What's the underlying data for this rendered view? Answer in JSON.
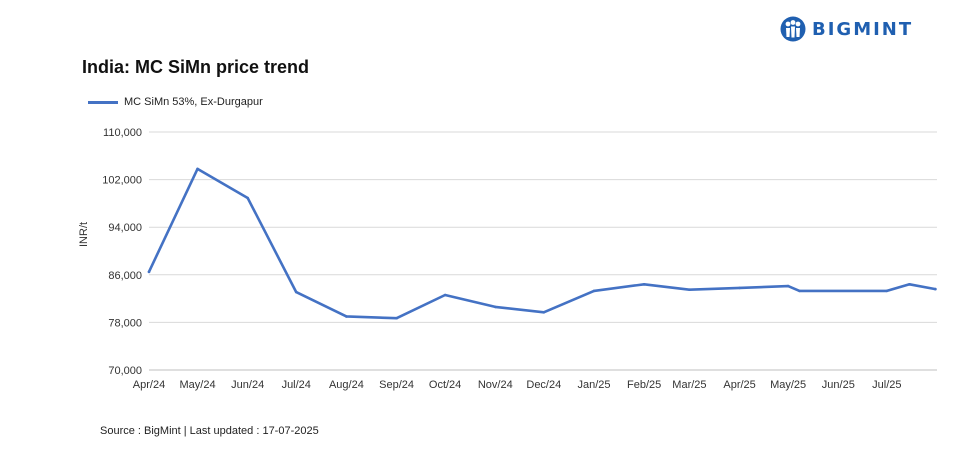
{
  "logo": {
    "text": "BIGMINT",
    "icon": "bigmint-people-icon",
    "color": "#1f5fb0"
  },
  "chart_data": {
    "type": "line",
    "title": "India: MC SiMn price trend",
    "ylabel": "INR/t",
    "xlabel": "",
    "ylim": [
      70000,
      110000
    ],
    "yticks": [
      70000,
      78000,
      86000,
      94000,
      102000,
      110000
    ],
    "ytick_labels": [
      "70,000",
      "78,000",
      "86,000",
      "94,000",
      "102,000",
      "110,000"
    ],
    "x_tick_labels": [
      "Apr/24",
      "May/24",
      "Jun/24",
      "Jul/24",
      "Aug/24",
      "Sep/24",
      "Oct/24",
      "Nov/24",
      "Dec/24",
      "Jan/25",
      "Feb/25",
      "Mar/25",
      "Apr/25",
      "May/25",
      "Jun/25",
      "Jul/25"
    ],
    "x_range": [
      "2024-04-01",
      "2025-08-01"
    ],
    "grid": true,
    "legend_position": "top-left",
    "series": [
      {
        "name": "MC SiMn 53%, Ex-Durgapur",
        "color": "#4472c4",
        "points": [
          [
            "2024-04-01",
            86500
          ],
          [
            "2024-05-01",
            103800
          ],
          [
            "2024-06-01",
            98900
          ],
          [
            "2024-07-01",
            83100
          ],
          [
            "2024-08-01",
            79000
          ],
          [
            "2024-09-01",
            78700
          ],
          [
            "2024-10-01",
            82600
          ],
          [
            "2024-11-01",
            80600
          ],
          [
            "2024-12-01",
            79700
          ],
          [
            "2025-01-01",
            83300
          ],
          [
            "2025-02-01",
            84400
          ],
          [
            "2025-03-01",
            83500
          ],
          [
            "2025-04-01",
            83800
          ],
          [
            "2025-05-01",
            84100
          ],
          [
            "2025-05-08",
            83300
          ],
          [
            "2025-07-01",
            83300
          ],
          [
            "2025-07-15",
            84400
          ],
          [
            "2025-07-31",
            83600
          ]
        ]
      }
    ]
  },
  "footer": {
    "source": "Source : BigMint | Last updated : 17-07-2025"
  }
}
